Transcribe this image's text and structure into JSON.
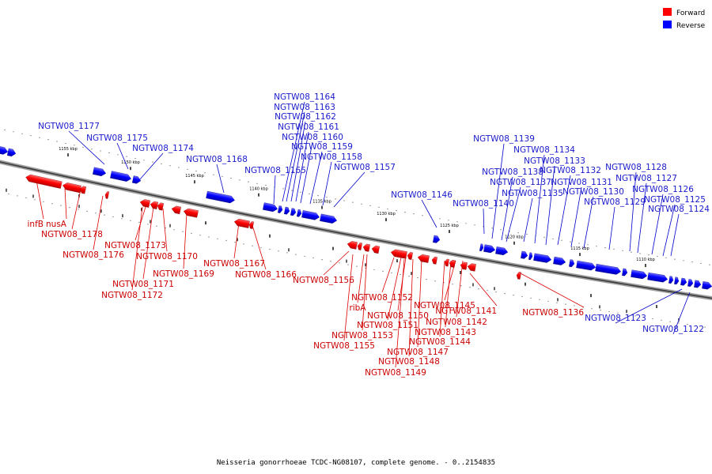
{
  "caption": "Neisseria gonorrhoeae TCDC-NG08107, complete genome. - 0..2154835",
  "legend": {
    "forward": {
      "label": "Forward",
      "color": "#ff0000"
    },
    "reverse": {
      "label": "Reverse",
      "color": "#0000ff"
    }
  },
  "ticks": [
    "1155 kbp",
    "1150 kbp",
    "1145 kbp",
    "1140 kbp",
    "1135 kbp",
    "1130 kbp",
    "1125 kbp",
    "1120 kbp",
    "1115 kbp",
    "1110 kbp"
  ],
  "forward_genes": [
    "infB",
    "nusA",
    "NGTW08_1178",
    "NGTW08_1176",
    "NGTW08_1173",
    "NGTW08_1170",
    "NGTW08_1169",
    "NGTW08_1171",
    "NGTW08_1172",
    "NGTW08_1167",
    "NGTW08_1166",
    "NGTW08_1156",
    "NGTW08_1152",
    "ribA",
    "NGTW08_1150",
    "NGTW08_1151",
    "NGTW08_1153",
    "NGTW08_1155",
    "NGTW08_1145",
    "NGTW08_1142",
    "NGTW08_1143",
    "NGTW08_1144",
    "NGTW08_1147",
    "NGTW08_1148",
    "NGTW08_1149",
    "NGTW08_1141",
    "NGTW08_1136"
  ],
  "reverse_genes": [
    "NGTW08_1177",
    "NGTW08_1175",
    "NGTW08_1174",
    "NGTW08_1168",
    "NGTW08_1165",
    "NGTW08_1164",
    "NGTW08_1163",
    "NGTW08_1162",
    "NGTW08_1161",
    "NGTW08_1160",
    "NGTW08_1159",
    "NGTW08_1158",
    "NGTW08_1157",
    "NGTW08_1146",
    "NGTW08_1140",
    "NGTW08_1139",
    "NGTW08_1138",
    "NGTW08_1137",
    "NGTW08_1135",
    "NGTW08_1134",
    "NGTW08_1133",
    "NGTW08_1132",
    "NGTW08_1131",
    "NGTW08_1130",
    "NGTW08_1129",
    "NGTW08_1128",
    "NGTW08_1127",
    "NGTW08_1126",
    "NGTW08_1125",
    "NGTW08_1124",
    "NGTW08_1123",
    "NGTW08_1122"
  ]
}
